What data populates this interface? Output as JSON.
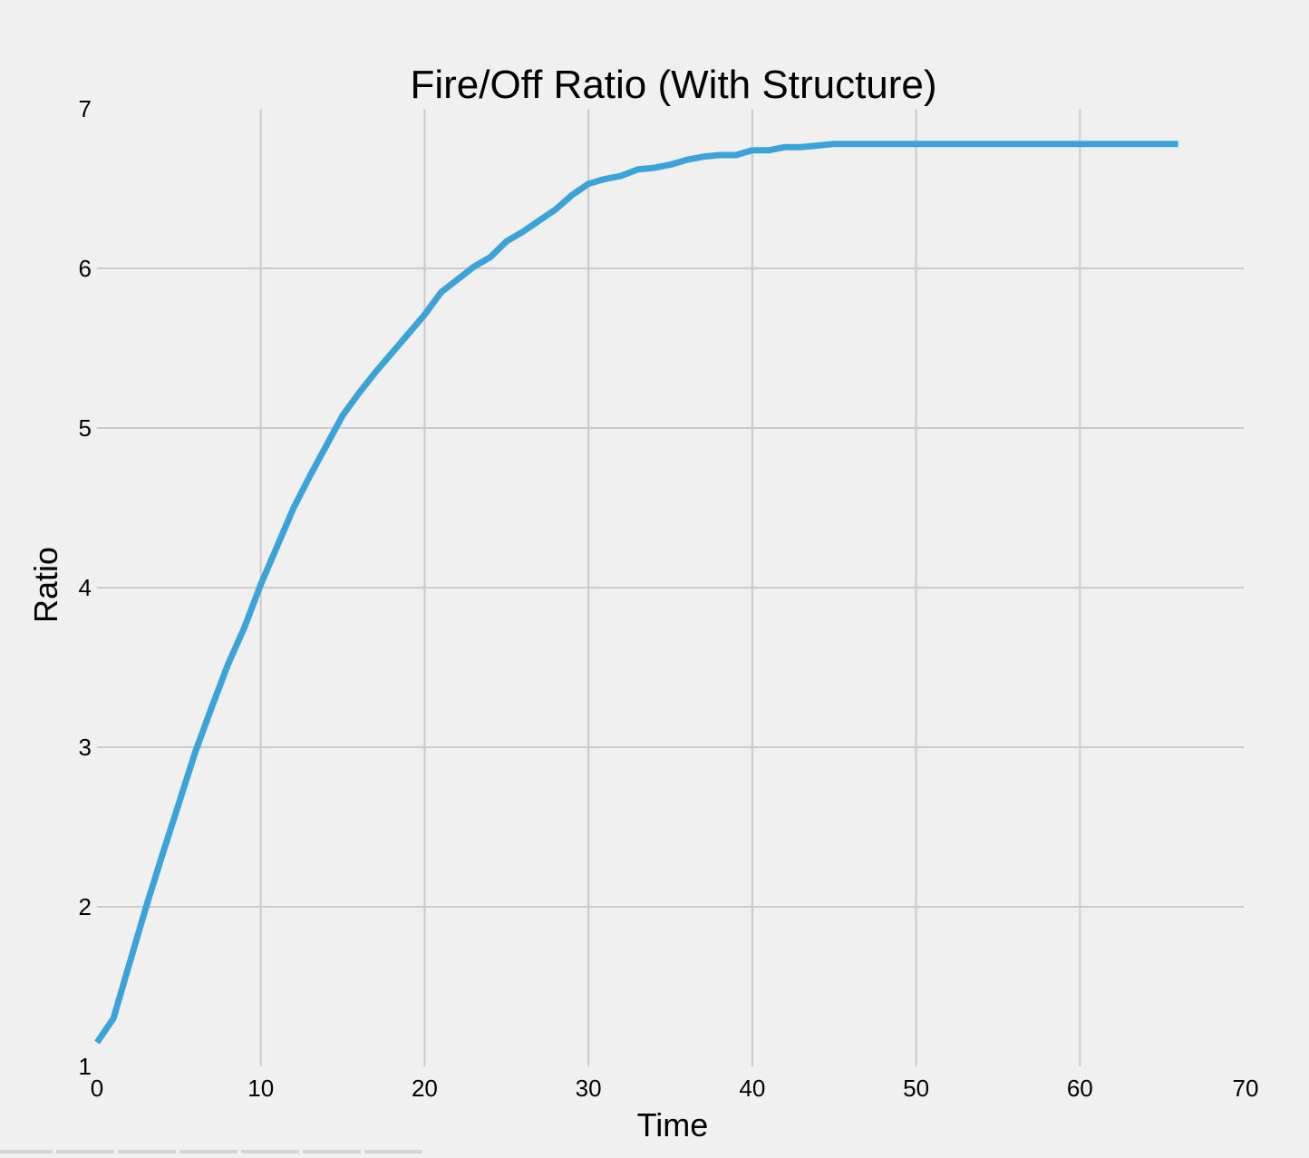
{
  "chart_data": {
    "type": "line",
    "title": "Fire/Off Ratio (With Structure)",
    "xlabel": "Time",
    "ylabel": "Ratio",
    "xlim": [
      0,
      70
    ],
    "ylim": [
      1,
      7
    ],
    "xticks": [
      0,
      10,
      20,
      30,
      40,
      50,
      60,
      70
    ],
    "yticks": [
      1,
      2,
      3,
      4,
      5,
      6,
      7
    ],
    "grid": true,
    "colors": {
      "series": "#3ca3d9",
      "background": "#f0f0f0",
      "grid": "#cbcbcb"
    },
    "series": [
      {
        "x": [
          0,
          1,
          2,
          3,
          4,
          5,
          6,
          7,
          8,
          9,
          10,
          11,
          12,
          13,
          14,
          15,
          16,
          17,
          18,
          19,
          20,
          21,
          22,
          23,
          24,
          25,
          26,
          27,
          28,
          29,
          30,
          31,
          32,
          33,
          34,
          35,
          36,
          37,
          38,
          39,
          40,
          41,
          42,
          43,
          44,
          45,
          46,
          50,
          55,
          60,
          66
        ],
        "y": [
          1.15,
          1.3,
          1.65,
          2.0,
          2.33,
          2.65,
          2.97,
          3.25,
          3.52,
          3.75,
          4.02,
          4.26,
          4.5,
          4.7,
          4.89,
          5.08,
          5.22,
          5.35,
          5.47,
          5.59,
          5.71,
          5.85,
          5.93,
          6.01,
          6.07,
          6.17,
          6.23,
          6.3,
          6.37,
          6.46,
          6.53,
          6.56,
          6.58,
          6.62,
          6.63,
          6.65,
          6.68,
          6.7,
          6.71,
          6.71,
          6.74,
          6.74,
          6.76,
          6.76,
          6.77,
          6.78,
          6.78,
          6.78,
          6.78,
          6.78,
          6.78
        ]
      }
    ]
  }
}
